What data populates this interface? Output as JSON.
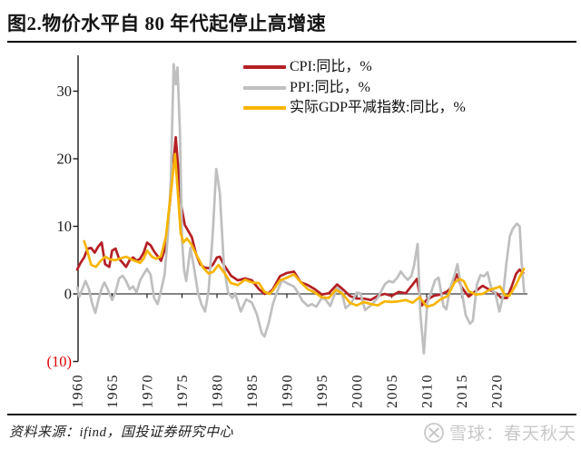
{
  "title": "图2.物价水平自 80 年代起停止高增速",
  "footer": {
    "source": "资料来源：ifind，国投证券研究中心"
  },
  "watermark": {
    "text": "雪球：春天秋天",
    "logo": "xueqiu-circle-x",
    "color": "#c8c8c8"
  },
  "colors": {
    "cpi": "#b42025",
    "ppi": "#bfbfbf",
    "deflator": "#f7b500",
    "axis": "#1a1a1a",
    "negative_tick_label": "#e30000"
  },
  "chart_data": {
    "type": "line",
    "title": "图2.物价水平自 80 年代起停止高增速",
    "xlabel": "",
    "ylabel": "",
    "unit": "%",
    "legend_position": "top-center-inside",
    "grid": false,
    "x_axis": {
      "range": [
        1960,
        2024.3
      ],
      "tick_years": [
        1960,
        1965,
        1970,
        1975,
        1980,
        1985,
        1990,
        1995,
        2000,
        2005,
        2010,
        2015,
        2020
      ],
      "tick_label_rotation": -90
    },
    "y_axis": {
      "range": [
        -10,
        34
      ],
      "ticks": [
        {
          "value": 30,
          "label": "30"
        },
        {
          "value": 20,
          "label": "20"
        },
        {
          "value": 10,
          "label": "10"
        },
        {
          "value": 0,
          "label": "0"
        },
        {
          "value": -10,
          "label": "(10)",
          "color": "#e30000"
        }
      ]
    },
    "series": [
      {
        "id": "cpi",
        "name": "CPI:同比，%",
        "color": "#b42025",
        "points": [
          [
            1960,
            3.6
          ],
          [
            1960.5,
            4.6
          ],
          [
            1961,
            5.4
          ],
          [
            1961.5,
            6.7
          ],
          [
            1962,
            6.8
          ],
          [
            1962.5,
            6.1
          ],
          [
            1963,
            7.0
          ],
          [
            1963.5,
            7.6
          ],
          [
            1964,
            4.4
          ],
          [
            1964.6,
            4.0
          ],
          [
            1965,
            6.4
          ],
          [
            1965.5,
            6.7
          ],
          [
            1966,
            5.2
          ],
          [
            1966.5,
            4.6
          ],
          [
            1967,
            4.0
          ],
          [
            1967.5,
            5.0
          ],
          [
            1968,
            5.4
          ],
          [
            1968.5,
            4.9
          ],
          [
            1969,
            5.2
          ],
          [
            1969.5,
            6.1
          ],
          [
            1970,
            7.6
          ],
          [
            1970.5,
            7.2
          ],
          [
            1971,
            6.3
          ],
          [
            1971.5,
            5.6
          ],
          [
            1972,
            4.9
          ],
          [
            1972.6,
            6.8
          ],
          [
            1973.1,
            11.7
          ],
          [
            1973.5,
            16.0
          ],
          [
            1974.1,
            23.2
          ],
          [
            1974.5,
            18.0
          ],
          [
            1974.9,
            13.0
          ],
          [
            1975.4,
            10.2
          ],
          [
            1975.9,
            9.3
          ],
          [
            1976.4,
            8.4
          ],
          [
            1977,
            5.9
          ],
          [
            1977.6,
            4.4
          ],
          [
            1978.2,
            3.9
          ],
          [
            1978.8,
            3.8
          ],
          [
            1979.4,
            4.3
          ],
          [
            1980,
            5.4
          ],
          [
            1980.4,
            5.5
          ],
          [
            1981,
            4.3
          ],
          [
            1982,
            2.7
          ],
          [
            1983,
            2.0
          ],
          [
            1984,
            2.3
          ],
          [
            1985,
            2.0
          ],
          [
            1986,
            0.7
          ],
          [
            1986.8,
            0.0
          ],
          [
            1987.5,
            0.2
          ],
          [
            1988,
            0.7
          ],
          [
            1989,
            2.6
          ],
          [
            1990,
            3.1
          ],
          [
            1991,
            3.3
          ],
          [
            1992,
            1.7
          ],
          [
            1993,
            1.3
          ],
          [
            1994,
            0.7
          ],
          [
            1995,
            -0.1
          ],
          [
            1996,
            0.1
          ],
          [
            1997.2,
            1.4
          ],
          [
            1998,
            0.7
          ],
          [
            1999,
            -0.3
          ],
          [
            2000,
            -0.7
          ],
          [
            2001,
            -0.7
          ],
          [
            2002,
            -0.9
          ],
          [
            2003,
            -0.3
          ],
          [
            2004,
            0.0
          ],
          [
            2005,
            -0.3
          ],
          [
            2006,
            0.3
          ],
          [
            2007,
            0.1
          ],
          [
            2008,
            1.4
          ],
          [
            2008.6,
            2.2
          ],
          [
            2009.3,
            -1.7
          ],
          [
            2010,
            -0.9
          ],
          [
            2011,
            -0.3
          ],
          [
            2012,
            -0.1
          ],
          [
            2013,
            0.4
          ],
          [
            2013.6,
            1.1
          ],
          [
            2014.3,
            2.9
          ],
          [
            2015,
            1.0
          ],
          [
            2016,
            -0.4
          ],
          [
            2017,
            0.4
          ],
          [
            2018,
            1.2
          ],
          [
            2019,
            0.6
          ],
          [
            2020,
            0.1
          ],
          [
            2020.7,
            -0.6
          ],
          [
            2021.5,
            -0.6
          ],
          [
            2022.2,
            1.2
          ],
          [
            2022.8,
            3.0
          ],
          [
            2023.3,
            3.6
          ],
          [
            2023.8,
            3.1
          ]
        ]
      },
      {
        "id": "ppi",
        "name": "PPI:同比，%",
        "color": "#bfbfbf",
        "points": [
          [
            1960,
            1.0
          ],
          [
            1960.3,
            -0.4
          ],
          [
            1960.7,
            0.6
          ],
          [
            1961.2,
            1.9
          ],
          [
            1961.7,
            0.7
          ],
          [
            1962.1,
            -1.3
          ],
          [
            1962.6,
            -2.8
          ],
          [
            1963.1,
            -0.6
          ],
          [
            1963.5,
            0.8
          ],
          [
            1963.9,
            1.7
          ],
          [
            1964.4,
            0.6
          ],
          [
            1965,
            -0.9
          ],
          [
            1965.5,
            0.3
          ],
          [
            1966,
            2.3
          ],
          [
            1966.5,
            2.7
          ],
          [
            1967,
            1.9
          ],
          [
            1967.5,
            0.7
          ],
          [
            1968,
            1.1
          ],
          [
            1968.5,
            0.2
          ],
          [
            1969,
            2.0
          ],
          [
            1969.5,
            2.9
          ],
          [
            1970,
            3.7
          ],
          [
            1970.5,
            2.8
          ],
          [
            1971,
            -0.6
          ],
          [
            1971.5,
            -1.5
          ],
          [
            1972,
            0.5
          ],
          [
            1972.5,
            2.8
          ],
          [
            1973,
            9.0
          ],
          [
            1973.4,
            17.0
          ],
          [
            1973.8,
            34.0
          ],
          [
            1974.1,
            31.0
          ],
          [
            1974.35,
            33.5
          ],
          [
            1974.7,
            24.0
          ],
          [
            1975,
            8.0
          ],
          [
            1975.3,
            3.5
          ],
          [
            1975.6,
            1.9
          ],
          [
            1976.2,
            6.8
          ],
          [
            1976.7,
            4.0
          ],
          [
            1977.3,
            0.1
          ],
          [
            1977.8,
            -1.6
          ],
          [
            1978.3,
            -2.6
          ],
          [
            1978.8,
            0.5
          ],
          [
            1979.4,
            9.0
          ],
          [
            1979.9,
            18.5
          ],
          [
            1980.4,
            15.0
          ],
          [
            1981,
            4.0
          ],
          [
            1981.6,
            0.2
          ],
          [
            1982.2,
            -0.6
          ],
          [
            1982.6,
            0.1
          ],
          [
            1983.4,
            -2.6
          ],
          [
            1984.2,
            -0.8
          ],
          [
            1985,
            -1.3
          ],
          [
            1985.7,
            -3.0
          ],
          [
            1986.4,
            -5.8
          ],
          [
            1986.8,
            -6.3
          ],
          [
            1987.4,
            -4.3
          ],
          [
            1988,
            -1.5
          ],
          [
            1988.6,
            0.3
          ],
          [
            1989.3,
            2.0
          ],
          [
            1990,
            1.6
          ],
          [
            1991,
            1.1
          ],
          [
            1991.6,
            0.2
          ],
          [
            1992.2,
            -1.0
          ],
          [
            1993,
            -1.8
          ],
          [
            1993.6,
            -1.5
          ],
          [
            1994.2,
            -1.9
          ],
          [
            1995,
            -0.6
          ],
          [
            1995.5,
            -0.8
          ],
          [
            1996.2,
            -1.8
          ],
          [
            1997.2,
            0.9
          ],
          [
            1997.8,
            0.4
          ],
          [
            1998.4,
            -2.1
          ],
          [
            1999.2,
            -1.4
          ],
          [
            2000,
            0.2
          ],
          [
            2000.5,
            0.1
          ],
          [
            2001.2,
            -2.4
          ],
          [
            2002,
            -1.7
          ],
          [
            2003,
            -0.6
          ],
          [
            2004,
            1.4
          ],
          [
            2004.6,
            1.9
          ],
          [
            2005.2,
            1.7
          ],
          [
            2005.8,
            2.4
          ],
          [
            2006.3,
            3.3
          ],
          [
            2006.8,
            2.6
          ],
          [
            2007.3,
            2.1
          ],
          [
            2007.8,
            2.6
          ],
          [
            2008.2,
            4.2
          ],
          [
            2008.7,
            7.4
          ],
          [
            2009.1,
            -3.0
          ],
          [
            2009.6,
            -8.8
          ],
          [
            2010.1,
            -1.2
          ],
          [
            2010.6,
            0.1
          ],
          [
            2011.2,
            2.0
          ],
          [
            2011.7,
            2.4
          ],
          [
            2012.4,
            -1.8
          ],
          [
            2012.8,
            -2.3
          ],
          [
            2013.4,
            1.0
          ],
          [
            2014,
            2.8
          ],
          [
            2014.4,
            4.4
          ],
          [
            2015,
            0.5
          ],
          [
            2015.6,
            -3.2
          ],
          [
            2016.2,
            -4.4
          ],
          [
            2016.6,
            -4.0
          ],
          [
            2017.2,
            1.4
          ],
          [
            2017.7,
            2.8
          ],
          [
            2018.2,
            2.6
          ],
          [
            2018.7,
            3.2
          ],
          [
            2019.3,
            0.6
          ],
          [
            2019.8,
            0.2
          ],
          [
            2020.4,
            -2.6
          ],
          [
            2020.9,
            -0.5
          ],
          [
            2021.4,
            4.5
          ],
          [
            2021.9,
            8.5
          ],
          [
            2022.3,
            9.6
          ],
          [
            2022.9,
            10.4
          ],
          [
            2023.3,
            10.0
          ],
          [
            2023.6,
            4.5
          ],
          [
            2023.95,
            0.3
          ]
        ]
      },
      {
        "id": "deflator",
        "name": "实际GDP平减指数:同比，%",
        "color": "#f7b500",
        "points": [
          [
            1961,
            7.8
          ],
          [
            1961.5,
            6.2
          ],
          [
            1962,
            4.3
          ],
          [
            1962.7,
            4.0
          ],
          [
            1963.3,
            4.8
          ],
          [
            1964,
            5.5
          ],
          [
            1964.7,
            5.1
          ],
          [
            1965.5,
            5.0
          ],
          [
            1966,
            5.2
          ],
          [
            1967,
            5.5
          ],
          [
            1968,
            5.0
          ],
          [
            1969,
            4.6
          ],
          [
            1969.5,
            5.2
          ],
          [
            1970,
            6.4
          ],
          [
            1970.7,
            5.5
          ],
          [
            1971.3,
            5.2
          ],
          [
            1972,
            5.6
          ],
          [
            1972.7,
            8.5
          ],
          [
            1973.3,
            14.0
          ],
          [
            1974,
            20.7
          ],
          [
            1974.4,
            15.0
          ],
          [
            1974.8,
            9.0
          ],
          [
            1975.2,
            7.6
          ],
          [
            1975.7,
            8.2
          ],
          [
            1976.3,
            7.4
          ],
          [
            1977,
            5.9
          ],
          [
            1978,
            3.9
          ],
          [
            1978.8,
            3.0
          ],
          [
            1979.5,
            3.3
          ],
          [
            1980.2,
            4.3
          ],
          [
            1981,
            3.2
          ],
          [
            1982,
            1.6
          ],
          [
            1983,
            1.3
          ],
          [
            1984,
            2.1
          ],
          [
            1985,
            1.7
          ],
          [
            1986,
            1.6
          ],
          [
            1986.8,
            0.3
          ],
          [
            1987.5,
            0.0
          ],
          [
            1988,
            0.5
          ],
          [
            1989,
            2.0
          ],
          [
            1990,
            2.4
          ],
          [
            1991,
            2.9
          ],
          [
            1992,
            1.7
          ],
          [
            1993,
            0.7
          ],
          [
            1994,
            0.2
          ],
          [
            1995,
            -0.5
          ],
          [
            1996,
            -0.6
          ],
          [
            1997,
            0.6
          ],
          [
            1998,
            0.0
          ],
          [
            1999,
            -1.3
          ],
          [
            2000,
            -1.7
          ],
          [
            2001,
            -1.2
          ],
          [
            2002,
            -1.5
          ],
          [
            2003,
            -1.7
          ],
          [
            2004,
            -1.1
          ],
          [
            2005,
            -1.2
          ],
          [
            2006,
            -1.1
          ],
          [
            2007,
            -0.9
          ],
          [
            2008,
            -1.3
          ],
          [
            2009,
            -0.5
          ],
          [
            2010,
            -1.9
          ],
          [
            2011,
            -1.6
          ],
          [
            2012,
            -0.8
          ],
          [
            2013,
            -0.3
          ],
          [
            2014,
            1.7
          ],
          [
            2014.7,
            2.2
          ],
          [
            2015.3,
            1.9
          ],
          [
            2016,
            0.4
          ],
          [
            2017,
            -0.1
          ],
          [
            2018,
            0.0
          ],
          [
            2019,
            0.6
          ],
          [
            2020,
            0.9
          ],
          [
            2020.5,
            1.1
          ],
          [
            2021.2,
            -0.2
          ],
          [
            2021.8,
            -0.3
          ],
          [
            2022.3,
            0.5
          ],
          [
            2022.8,
            1.4
          ],
          [
            2023.3,
            2.5
          ],
          [
            2023.9,
            3.7
          ]
        ]
      }
    ]
  }
}
